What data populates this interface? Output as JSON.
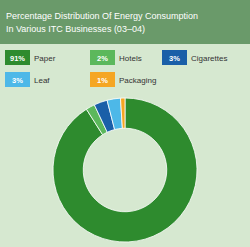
{
  "chart_data": {
    "type": "donut",
    "title": "Percentage Distribution Of Energy Consumption\nIn Various ITC Businesses (03–04)",
    "categories": [
      "Paper",
      "Hotels",
      "Cigarettes",
      "Leaf",
      "Packaging"
    ],
    "values": [
      91,
      2,
      3,
      3,
      1
    ],
    "value_labels": [
      "91%",
      "2%",
      "3%",
      "3%",
      "1%"
    ],
    "colors": [
      "#2e8b2e",
      "#5cb85c",
      "#1a5fa8",
      "#4db8e8",
      "#f5a623"
    ],
    "legend": "top"
  }
}
